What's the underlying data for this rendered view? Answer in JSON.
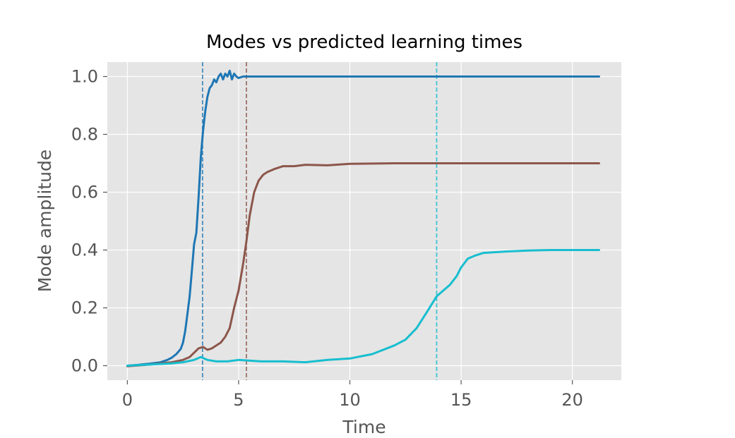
{
  "chart_data": {
    "type": "line",
    "title": "Modes vs predicted learning times",
    "xlabel": "Time",
    "ylabel": "Mode amplitude",
    "xlim": [
      -0.9,
      22.2
    ],
    "ylim": [
      -0.05,
      1.05
    ],
    "xticks": [
      0,
      5,
      10,
      15,
      20
    ],
    "yticks": [
      0.0,
      0.2,
      0.4,
      0.6,
      0.8,
      1.0
    ],
    "ytick_labels": [
      "0.0",
      "0.2",
      "0.4",
      "0.6",
      "0.8",
      "1.0"
    ],
    "grid": true,
    "legend": "none",
    "series": [
      {
        "color": "#1f77b4",
        "x": [
          0,
          0.5,
          1.0,
          1.5,
          1.8,
          2.0,
          2.2,
          2.4,
          2.5,
          2.6,
          2.7,
          2.8,
          2.9,
          3.0,
          3.1,
          3.2,
          3.3,
          3.4,
          3.5,
          3.6,
          3.7,
          3.8,
          3.9,
          4.0,
          4.1,
          4.2,
          4.3,
          4.4,
          4.5,
          4.6,
          4.7,
          4.8,
          4.9,
          5.0,
          5.2,
          5.5,
          6.0,
          7.0,
          10.0,
          15.0,
          21.2
        ],
        "y": [
          0.0,
          0.003,
          0.007,
          0.012,
          0.02,
          0.028,
          0.04,
          0.058,
          0.08,
          0.12,
          0.18,
          0.24,
          0.33,
          0.42,
          0.46,
          0.58,
          0.72,
          0.81,
          0.88,
          0.93,
          0.96,
          0.97,
          0.99,
          0.98,
          1.0,
          1.01,
          0.99,
          1.01,
          1.0,
          1.02,
          0.99,
          1.01,
          1.0,
          0.995,
          1.0,
          1.0,
          1.0,
          1.0,
          1.0,
          1.0,
          1.0
        ]
      },
      {
        "color": "#8c564b",
        "x": [
          0,
          1.0,
          1.5,
          2.0,
          2.5,
          2.8,
          3.0,
          3.2,
          3.4,
          3.6,
          3.8,
          4.0,
          4.2,
          4.4,
          4.6,
          4.8,
          5.0,
          5.2,
          5.35,
          5.5,
          5.7,
          5.9,
          6.1,
          6.3,
          6.6,
          7.0,
          7.5,
          8.0,
          9.0,
          10.0,
          12.0,
          15.0,
          21.2
        ],
        "y": [
          -0.002,
          0.004,
          0.008,
          0.012,
          0.02,
          0.03,
          0.045,
          0.06,
          0.065,
          0.055,
          0.06,
          0.07,
          0.08,
          0.1,
          0.13,
          0.2,
          0.26,
          0.35,
          0.43,
          0.52,
          0.6,
          0.64,
          0.66,
          0.67,
          0.68,
          0.69,
          0.69,
          0.695,
          0.693,
          0.698,
          0.7,
          0.7,
          0.7
        ]
      },
      {
        "color": "#17becf",
        "x": [
          0,
          1.0,
          2.0,
          2.5,
          3.0,
          3.3,
          3.6,
          4.0,
          4.5,
          5.0,
          6.0,
          7.0,
          8.0,
          9.0,
          10.0,
          11.0,
          12.0,
          12.5,
          13.0,
          13.5,
          13.9,
          14.2,
          14.5,
          14.8,
          15.0,
          15.3,
          15.6,
          16.0,
          17.0,
          18.0,
          19.0,
          21.2
        ],
        "y": [
          0.0,
          0.004,
          0.008,
          0.012,
          0.02,
          0.03,
          0.02,
          0.015,
          0.015,
          0.02,
          0.015,
          0.015,
          0.012,
          0.02,
          0.025,
          0.04,
          0.07,
          0.09,
          0.13,
          0.19,
          0.24,
          0.26,
          0.28,
          0.31,
          0.34,
          0.37,
          0.38,
          0.39,
          0.395,
          0.398,
          0.4,
          0.4
        ]
      }
    ],
    "vlines": [
      {
        "x": 3.38,
        "color": "#1f77b4",
        "style": "dashed"
      },
      {
        "x": 5.35,
        "color": "#8c564b",
        "style": "dashed"
      },
      {
        "x": 13.9,
        "color": "#17becf",
        "style": "dashed"
      }
    ],
    "colors": {
      "plot_background": "#e5e5e5",
      "grid": "#ffffff",
      "tick_text": "#555555"
    }
  }
}
